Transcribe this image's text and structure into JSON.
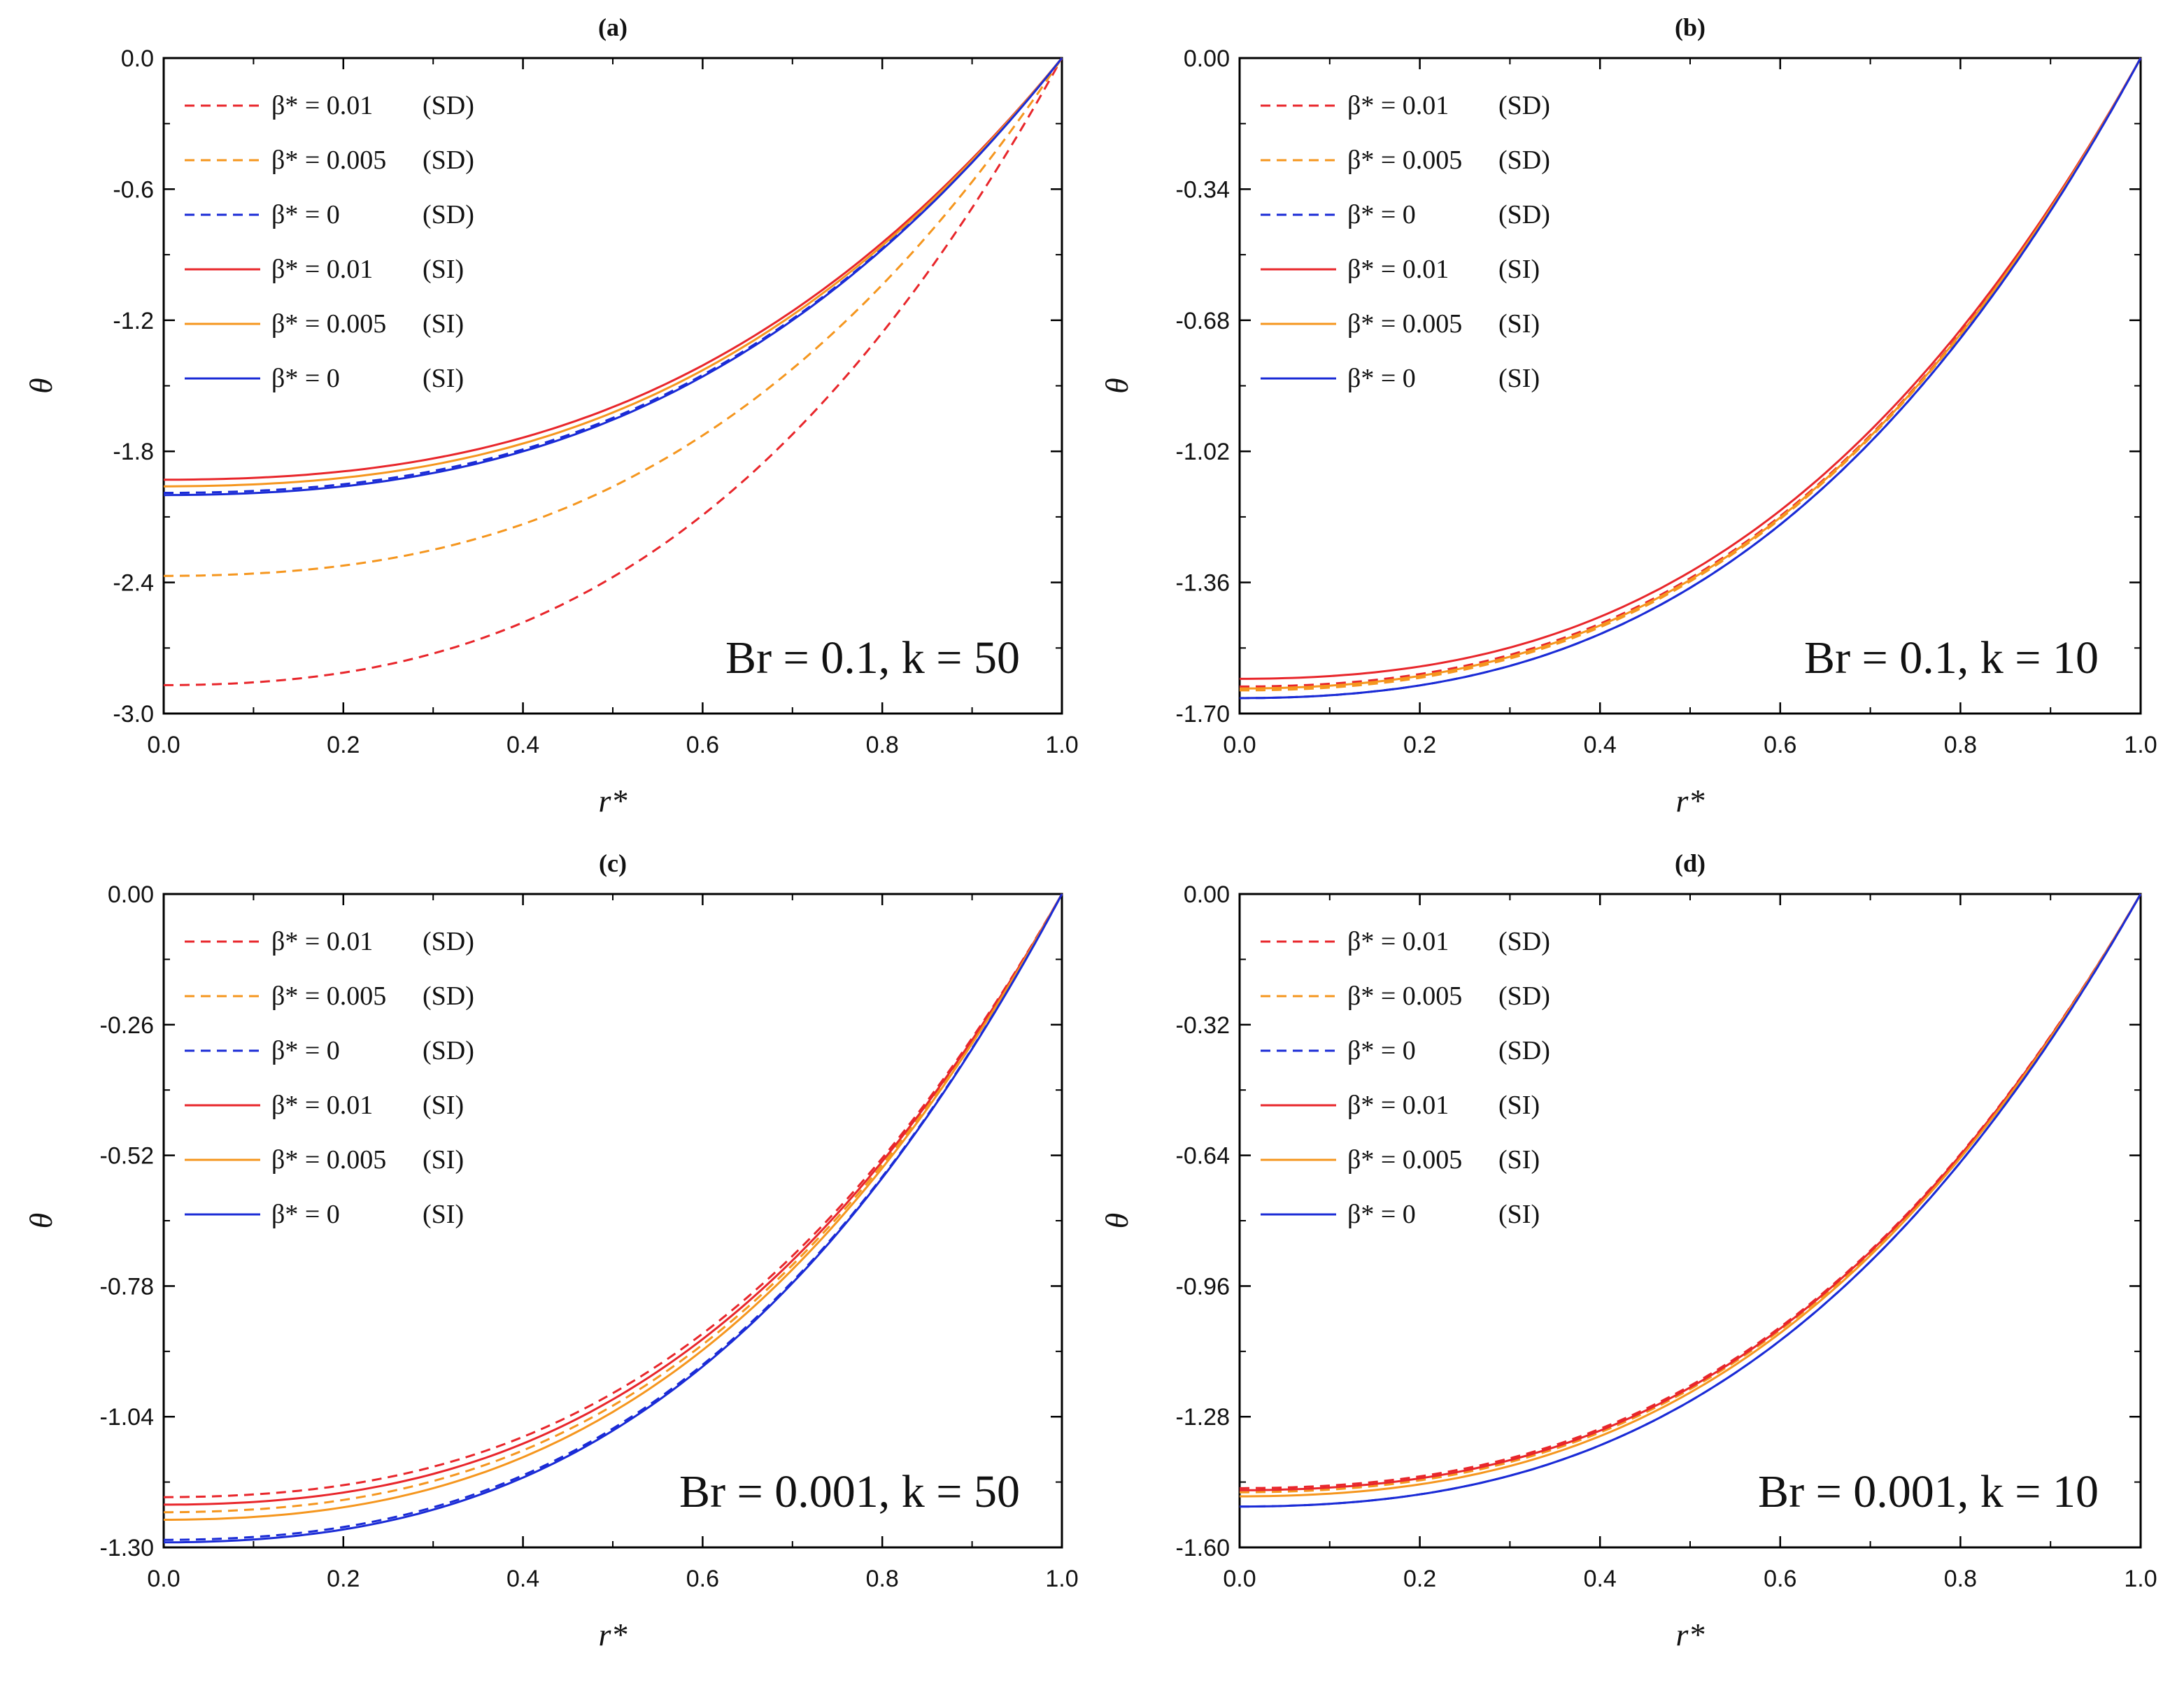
{
  "colors": {
    "red": "#e8262b",
    "orange": "#f5961e",
    "blue": "#1a2bd6",
    "axis": "#000000"
  },
  "chart_data": [
    {
      "type": "line",
      "panel_label": "(a)",
      "xlabel": "r*",
      "ylabel": "θ",
      "xlim": [
        0,
        1
      ],
      "ylim": [
        -3.0,
        0.0
      ],
      "xticks": [
        0.0,
        0.2,
        0.4,
        0.6,
        0.8,
        1.0
      ],
      "yticks": [
        -3.0,
        -2.4,
        -1.8,
        -1.2,
        -0.6,
        0.0
      ],
      "xtick_labels": [
        "0.0",
        "0.2",
        "0.4",
        "0.6",
        "0.8",
        "1.0"
      ],
      "ytick_labels": [
        "-3.0",
        "-2.4",
        "-1.8",
        "-1.2",
        "-0.6",
        "0.0"
      ],
      "annotation": "Br = 0.1, k = 50",
      "series": [
        {
          "name": "β* = 0.01 (SD)",
          "beta_label": "β* = 0.01",
          "model": "(SD)",
          "style": "dashed",
          "color": "red",
          "theta_at_center": -2.87
        },
        {
          "name": "β* = 0.005 (SD)",
          "beta_label": "β* = 0.005",
          "model": "(SD)",
          "style": "dashed",
          "color": "orange",
          "theta_at_center": -2.37
        },
        {
          "name": "β* = 0 (SD)",
          "beta_label": "β* = 0",
          "model": "(SD)",
          "style": "dashed",
          "color": "blue",
          "theta_at_center": -1.99
        },
        {
          "name": "β* = 0.01 (SI)",
          "beta_label": "β* = 0.01",
          "model": "(SI)",
          "style": "solid",
          "color": "red",
          "theta_at_center": -1.93
        },
        {
          "name": "β* = 0.005 (SI)",
          "beta_label": "β* = 0.005",
          "model": "(SI)",
          "style": "solid",
          "color": "orange",
          "theta_at_center": -1.96
        },
        {
          "name": "β* = 0 (SI)",
          "beta_label": "β* = 0",
          "model": "(SI)",
          "style": "solid",
          "color": "blue",
          "theta_at_center": -2.0
        }
      ]
    },
    {
      "type": "line",
      "panel_label": "(b)",
      "xlabel": "r*",
      "ylabel": "θ",
      "xlim": [
        0,
        1
      ],
      "ylim": [
        -1.7,
        0.0
      ],
      "xticks": [
        0.0,
        0.2,
        0.4,
        0.6,
        0.8,
        1.0
      ],
      "yticks": [
        -1.7,
        -1.36,
        -1.02,
        -0.68,
        -0.34,
        0.0
      ],
      "xtick_labels": [
        "0.0",
        "0.2",
        "0.4",
        "0.6",
        "0.8",
        "1.0"
      ],
      "ytick_labels": [
        "-1.70",
        "-1.36",
        "-1.02",
        "-0.68",
        "-0.34",
        "0.00"
      ],
      "annotation": "Br = 0.1, k = 10",
      "series": [
        {
          "name": "β* = 0.01 (SD)",
          "beta_label": "β* = 0.01",
          "model": "(SD)",
          "style": "dashed",
          "color": "red",
          "theta_at_center": -1.63
        },
        {
          "name": "β* = 0.005 (SD)",
          "beta_label": "β* = 0.005",
          "model": "(SD)",
          "style": "dashed",
          "color": "orange",
          "theta_at_center": -1.64
        },
        {
          "name": "β* = 0 (SD)",
          "beta_label": "β* = 0",
          "model": "(SD)",
          "style": "dashed",
          "color": "blue",
          "theta_at_center": -1.66
        },
        {
          "name": "β* = 0.01 (SI)",
          "beta_label": "β* = 0.01",
          "model": "(SI)",
          "style": "solid",
          "color": "red",
          "theta_at_center": -1.61
        },
        {
          "name": "β* = 0.005 (SI)",
          "beta_label": "β* = 0.005",
          "model": "(SI)",
          "style": "solid",
          "color": "orange",
          "theta_at_center": -1.635
        },
        {
          "name": "β* = 0 (SI)",
          "beta_label": "β* = 0",
          "model": "(SI)",
          "style": "solid",
          "color": "blue",
          "theta_at_center": -1.66
        }
      ]
    },
    {
      "type": "line",
      "panel_label": "(c)",
      "xlabel": "r*",
      "ylabel": "θ",
      "xlim": [
        0,
        1
      ],
      "ylim": [
        -1.3,
        0.0
      ],
      "xticks": [
        0.0,
        0.2,
        0.4,
        0.6,
        0.8,
        1.0
      ],
      "yticks": [
        -1.3,
        -1.04,
        -0.78,
        -0.52,
        -0.26,
        0.0
      ],
      "xtick_labels": [
        "0.0",
        "0.2",
        "0.4",
        "0.6",
        "0.8",
        "1.0"
      ],
      "ytick_labels": [
        "-1.30",
        "-1.04",
        "-0.78",
        "-0.52",
        "-0.26",
        "0.00"
      ],
      "annotation": "Br = 0.001, k = 50",
      "series": [
        {
          "name": "β* = 0.01 (SD)",
          "beta_label": "β* = 0.01",
          "model": "(SD)",
          "style": "dashed",
          "color": "red",
          "theta_at_center": -1.2
        },
        {
          "name": "β* = 0.005 (SD)",
          "beta_label": "β* = 0.005",
          "model": "(SD)",
          "style": "dashed",
          "color": "orange",
          "theta_at_center": -1.23
        },
        {
          "name": "β* = 0 (SD)",
          "beta_label": "β* = 0",
          "model": "(SD)",
          "style": "dashed",
          "color": "blue",
          "theta_at_center": -1.285
        },
        {
          "name": "β* = 0.01 (SI)",
          "beta_label": "β* = 0.01",
          "model": "(SI)",
          "style": "solid",
          "color": "red",
          "theta_at_center": -1.215
        },
        {
          "name": "β* = 0.005 (SI)",
          "beta_label": "β* = 0.005",
          "model": "(SI)",
          "style": "solid",
          "color": "orange",
          "theta_at_center": -1.245
        },
        {
          "name": "β* = 0 (SI)",
          "beta_label": "β* = 0",
          "model": "(SI)",
          "style": "solid",
          "color": "blue",
          "theta_at_center": -1.29
        }
      ]
    },
    {
      "type": "line",
      "panel_label": "(d)",
      "xlabel": "r*",
      "ylabel": "θ",
      "xlim": [
        0,
        1
      ],
      "ylim": [
        -1.6,
        0.0
      ],
      "xticks": [
        0.0,
        0.2,
        0.4,
        0.6,
        0.8,
        1.0
      ],
      "yticks": [
        -1.6,
        -1.28,
        -0.96,
        -0.64,
        -0.32,
        0.0
      ],
      "xtick_labels": [
        "0.0",
        "0.2",
        "0.4",
        "0.6",
        "0.8",
        "1.0"
      ],
      "ytick_labels": [
        "-1.60",
        "-1.28",
        "-0.96",
        "-0.64",
        "-0.32",
        "0.00"
      ],
      "annotation": "Br = 0.001, k = 10",
      "series": [
        {
          "name": "β* = 0.01 (SD)",
          "beta_label": "β* = 0.01",
          "model": "(SD)",
          "style": "dashed",
          "color": "red",
          "theta_at_center": -1.455
        },
        {
          "name": "β* = 0.005 (SD)",
          "beta_label": "β* = 0.005",
          "model": "(SD)",
          "style": "dashed",
          "color": "orange",
          "theta_at_center": -1.465
        },
        {
          "name": "β* = 0 (SD)",
          "beta_label": "β* = 0",
          "model": "(SD)",
          "style": "dashed",
          "color": "blue",
          "theta_at_center": -1.5
        },
        {
          "name": "β* = 0.01 (SI)",
          "beta_label": "β* = 0.01",
          "model": "(SI)",
          "style": "solid",
          "color": "red",
          "theta_at_center": -1.46
        },
        {
          "name": "β* = 0.005 (SI)",
          "beta_label": "β* = 0.005",
          "model": "(SI)",
          "style": "solid",
          "color": "orange",
          "theta_at_center": -1.475
        },
        {
          "name": "β* = 0 (SI)",
          "beta_label": "β* = 0",
          "model": "(SI)",
          "style": "solid",
          "color": "blue",
          "theta_at_center": -1.5
        }
      ]
    }
  ]
}
